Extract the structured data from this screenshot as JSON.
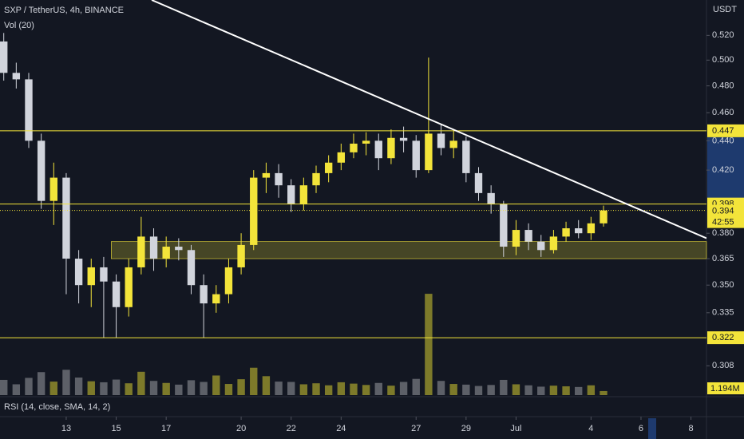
{
  "chart_data": {
    "type": "candlestick",
    "title": "SXP / TetherUS, 4h, BINANCE",
    "volume_title": "Vol (20)",
    "currency": "USDT",
    "indicator_title": "RSI (14, close, SMA, 14, 2)",
    "log_scale": true,
    "up_color": "#f3e43a",
    "down_color": "#d1d4dc",
    "volume_up_color": "#7d7a2a",
    "volume_down_color": "#5d6068",
    "level_color": "#f3e43a",
    "trendline_color": "#ffffff",
    "xlim": [
      10.35,
      38.62
    ],
    "xticks": [
      13,
      15,
      17,
      20,
      22,
      24,
      27,
      29,
      {
        "value": 31,
        "label": "Jul"
      },
      {
        "value": 34,
        "label": "4"
      },
      {
        "value": 36,
        "label": "6"
      },
      {
        "value": 38,
        "label": "8"
      }
    ],
    "ylim": [
      0.294,
      0.55
    ],
    "yticks": [
      {
        "value": 0.52,
        "label": "0.520"
      },
      {
        "value": 0.5,
        "label": "0.500"
      },
      {
        "value": 0.48,
        "label": "0.480"
      },
      {
        "value": 0.46,
        "label": "0.460"
      },
      {
        "value": 0.44,
        "label": "0.440"
      },
      {
        "value": 0.42,
        "label": "0.420"
      },
      {
        "value": 0.38,
        "label": "0.380"
      },
      0.365,
      {
        "value": 0.35,
        "label": "0.350"
      },
      0.335,
      0.308
    ],
    "x": [
      10.5,
      11,
      11.5,
      12,
      12.5,
      13,
      13.5,
      14,
      14.5,
      15,
      15.5,
      16,
      16.5,
      17,
      17.5,
      18,
      18.5,
      19,
      19.5,
      20,
      20.5,
      21,
      21.5,
      22,
      22.5,
      23,
      23.5,
      24,
      24.5,
      25,
      25.5,
      26,
      26.5,
      27,
      27.5,
      28,
      28.5,
      29,
      29.5,
      30,
      30.5,
      31,
      31.5,
      32,
      32.5,
      33,
      33.5,
      34,
      34.5
    ],
    "open": [
      0.515,
      0.49,
      0.485,
      0.44,
      0.4,
      0.415,
      0.365,
      0.35,
      0.36,
      0.352,
      0.338,
      0.36,
      0.378,
      0.365,
      0.372,
      0.37,
      0.35,
      0.34,
      0.345,
      0.36,
      0.373,
      0.415,
      0.418,
      0.41,
      0.398,
      0.41,
      0.418,
      0.425,
      0.432,
      0.438,
      0.44,
      0.428,
      0.442,
      0.44,
      0.42,
      0.445,
      0.435,
      0.44,
      0.418,
      0.405,
      0.398,
      0.372,
      0.382,
      0.375,
      0.37,
      0.378,
      0.383,
      0.38,
      0.386
    ],
    "high": [
      0.522,
      0.498,
      0.49,
      0.445,
      0.425,
      0.418,
      0.37,
      0.365,
      0.366,
      0.356,
      0.365,
      0.39,
      0.383,
      0.378,
      0.377,
      0.373,
      0.356,
      0.35,
      0.365,
      0.38,
      0.42,
      0.425,
      0.424,
      0.414,
      0.415,
      0.423,
      0.43,
      0.438,
      0.445,
      0.446,
      0.445,
      0.448,
      0.45,
      0.444,
      0.502,
      0.452,
      0.447,
      0.443,
      0.422,
      0.41,
      0.4,
      0.388,
      0.386,
      0.379,
      0.382,
      0.387,
      0.388,
      0.39,
      0.397
    ],
    "low": [
      0.484,
      0.478,
      0.435,
      0.395,
      0.385,
      0.345,
      0.34,
      0.338,
      0.322,
      0.322,
      0.333,
      0.356,
      0.358,
      0.36,
      0.364,
      0.345,
      0.322,
      0.335,
      0.34,
      0.356,
      0.37,
      0.405,
      0.402,
      0.393,
      0.394,
      0.405,
      0.412,
      0.42,
      0.428,
      0.43,
      0.42,
      0.424,
      0.432,
      0.415,
      0.418,
      0.43,
      0.428,
      0.412,
      0.4,
      0.392,
      0.366,
      0.367,
      0.37,
      0.366,
      0.368,
      0.375,
      0.377,
      0.376,
      0.384
    ],
    "close": [
      0.49,
      0.485,
      0.44,
      0.4,
      0.415,
      0.365,
      0.35,
      0.36,
      0.352,
      0.338,
      0.36,
      0.378,
      0.365,
      0.372,
      0.37,
      0.35,
      0.34,
      0.345,
      0.36,
      0.373,
      0.415,
      0.418,
      0.41,
      0.398,
      0.41,
      0.418,
      0.425,
      0.432,
      0.438,
      0.44,
      0.428,
      0.442,
      0.44,
      0.42,
      0.445,
      0.435,
      0.44,
      0.418,
      0.405,
      0.398,
      0.372,
      0.382,
      0.375,
      0.37,
      0.378,
      0.383,
      0.38,
      0.386,
      0.394
    ],
    "volume": [
      4.5,
      3.2,
      5.1,
      6.8,
      4.0,
      7.5,
      5.2,
      4.1,
      3.8,
      4.6,
      3.5,
      6.9,
      4.2,
      3.6,
      3.1,
      4.4,
      3.9,
      5.8,
      3.3,
      4.7,
      8.1,
      5.6,
      4.0,
      3.9,
      3.2,
      3.5,
      2.9,
      3.8,
      3.4,
      3.0,
      3.6,
      2.8,
      3.9,
      4.8,
      30,
      4.2,
      3.3,
      3.1,
      2.7,
      3.0,
      4.5,
      3.2,
      2.9,
      2.5,
      2.8,
      2.6,
      2.4,
      2.9,
      1.194
    ],
    "volume_ylim": [
      0,
      117
    ],
    "volume_last_label": "1.194M",
    "levels": [
      0.447,
      0.398,
      0.322
    ],
    "current_price": 0.394,
    "countdown": "42:55",
    "zone": {
      "x": 14.8,
      "low": 0.365,
      "high": 0.375
    },
    "trendline": {
      "x": [
        16.42,
        38.62
      ],
      "y": [
        0.55,
        0.377
      ]
    }
  }
}
